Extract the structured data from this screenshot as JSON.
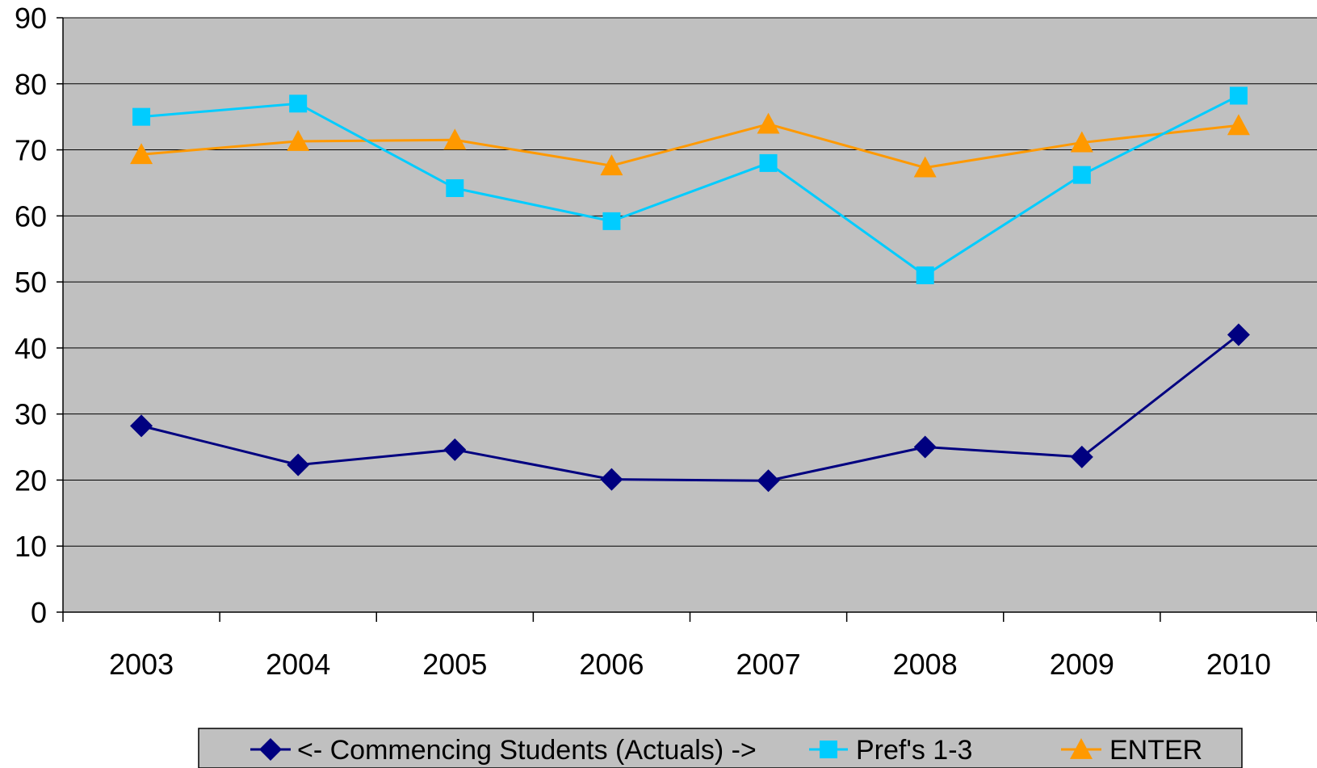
{
  "chart_data": {
    "type": "line",
    "title": "",
    "xlabel": "",
    "ylabel": "",
    "categories": [
      "2003",
      "2004",
      "2005",
      "2006",
      "2007",
      "2008",
      "2009",
      "2010"
    ],
    "ylim": [
      0,
      90
    ],
    "yticks": [
      "0",
      "10",
      "20",
      "30",
      "40",
      "50",
      "60",
      "70",
      "80",
      "90"
    ],
    "grid": true,
    "legend_position": "bottom",
    "series": [
      {
        "name": "<- Commencing Students (Actuals) ->",
        "marker": "diamond",
        "color": "#000080",
        "values": [
          28.2,
          22.3,
          24.6,
          20.1,
          19.9,
          25.0,
          23.5,
          42.0
        ]
      },
      {
        "name": "Pref's 1-3",
        "marker": "square",
        "color": "#00CCFF",
        "values": [
          75.0,
          77.0,
          64.2,
          59.2,
          68.0,
          51.0,
          66.2,
          78.2
        ]
      },
      {
        "name": "ENTER",
        "marker": "triangle",
        "color": "#FF9900",
        "values": [
          69.3,
          71.3,
          71.5,
          67.6,
          73.9,
          67.3,
          71.1,
          73.7
        ]
      }
    ]
  },
  "colors": {
    "plot_background": "#C0C0C0",
    "gridline": "#000000",
    "legend_background": "#C0C0C0"
  }
}
